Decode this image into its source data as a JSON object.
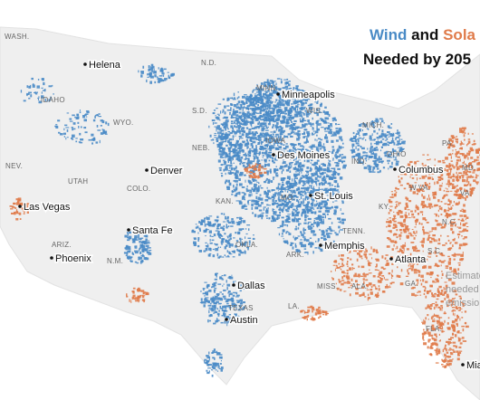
{
  "title": {
    "wind": "Wind",
    "and": "and",
    "solar": "Sola",
    "subtitle": "Needed by 205"
  },
  "state_labels": [
    "WASH.",
    "IDAHO",
    "WYO.",
    "N.D.",
    "S.D.",
    "MINN.",
    "WIS.",
    "MICH.",
    "NEB.",
    "IOWA",
    "NEV.",
    "UTAH",
    "COLO.",
    "KAN.",
    "MO.",
    "IND.",
    "OHIO",
    "PA.",
    "W.VA.",
    "KY.",
    "VA.",
    "MD.",
    "TENN.",
    "N.C.",
    "S.C.",
    "ARIZ.",
    "N.M.",
    "OKLA.",
    "ARK.",
    "MISS.",
    "ALA.",
    "GA.",
    "TEXAS",
    "LA.",
    "FLA."
  ],
  "cities": [
    "Helena",
    "Minneapolis",
    "Des Moines",
    "Denver",
    "Columbus",
    "St. Louis",
    "Las Vegas",
    "Santa Fe",
    "Memphis",
    "Atlanta",
    "Phoenix",
    "Dallas",
    "Austin",
    "Mia"
  ],
  "annotation": [
    "Estimate",
    "needed",
    "emissio"
  ]
}
